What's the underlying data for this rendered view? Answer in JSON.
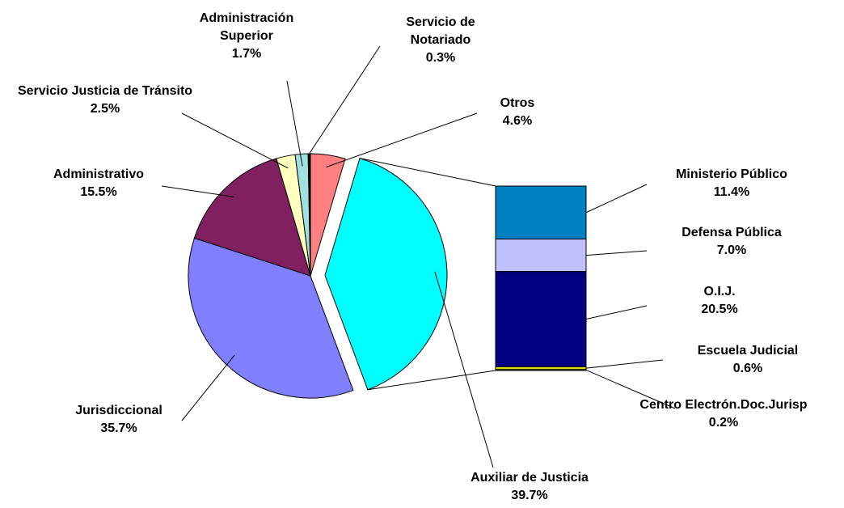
{
  "chart_data": {
    "type": "pie-of-bar",
    "pie": {
      "categories": [
        "Otros",
        "Auxiliar de Justicia",
        "Jurisdiccional",
        "Administrativo",
        "Servicio Justicia de Tránsito",
        "Administración Superior",
        "Servicio de Notariado"
      ],
      "values": [
        4.6,
        39.7,
        35.7,
        15.5,
        2.5,
        1.7,
        0.3
      ],
      "value_labels": [
        "4.6%",
        "39.7%",
        "35.7%",
        "15.5%",
        "2.5%",
        "1.7%",
        "0.3%"
      ],
      "colors": [
        "#ff8080",
        "#00ffff",
        "#8080ff",
        "#802060",
        "#ffffc0",
        "#a0e0e0",
        "#000000"
      ]
    },
    "bar": {
      "categories": [
        "Ministerio Público",
        "Defensa Pública",
        "O.I.J.",
        "Escuela Judicial",
        "Centro Electrón.Doc.Jurisp"
      ],
      "values": [
        11.4,
        7.0,
        20.5,
        0.6,
        0.2
      ],
      "value_labels": [
        "11.4%",
        "7.0%",
        "20.5%",
        "0.6%",
        "0.2%"
      ],
      "colors": [
        "#0080c0",
        "#c0c0ff",
        "#000080",
        "#e0e000",
        "#808000"
      ]
    }
  }
}
